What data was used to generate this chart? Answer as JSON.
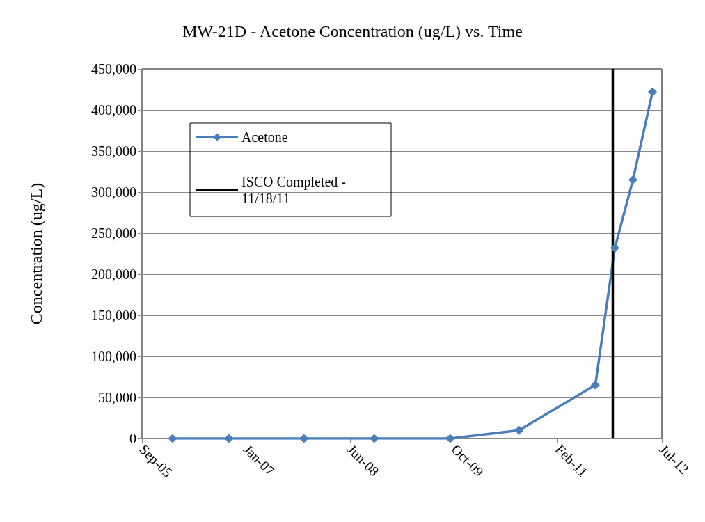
{
  "chart_data": {
    "type": "line",
    "title": "MW-21D - Acetone Concentration (ug/L) vs. Time",
    "ylabel": "Concentration (ug/L)",
    "x": [
      "2006-01-31",
      "2006-10-29",
      "2007-10-25",
      "2008-09-27",
      "2009-09-27",
      "2010-08-24",
      "2011-08-26",
      "2011-11-28",
      "2012-02-23",
      "2012-05-27"
    ],
    "series": [
      {
        "name": "Acetone",
        "color": "#4a7ebb",
        "values": [
          0,
          0,
          0,
          0,
          0,
          10000,
          65000,
          232000,
          315000,
          422000
        ]
      }
    ],
    "xlim": [
      "2005-09-06",
      "2012-07-11"
    ],
    "xticks": [
      {
        "value": "2005-09-06",
        "label": "Sep-05"
      },
      {
        "value": "2007-01-19",
        "label": "Jan-07"
      },
      {
        "value": "2008-06-02",
        "label": "Jun-08"
      },
      {
        "value": "2009-10-15",
        "label": "Oct-09"
      },
      {
        "value": "2011-02-27",
        "label": "Feb-11"
      },
      {
        "value": "2012-07-11",
        "label": "Jul-12"
      }
    ],
    "ylim": [
      0,
      450000
    ],
    "yticks": [
      0,
      {
        "value": 50000,
        "label": "50,000"
      },
      {
        "value": 100000,
        "label": "100,000"
      },
      {
        "value": 150000,
        "label": "150,000"
      },
      {
        "value": 200000,
        "label": "200,000"
      },
      {
        "value": 250000,
        "label": "250,000"
      },
      {
        "value": 300000,
        "label": "300,000"
      },
      {
        "value": 350000,
        "label": "350,000"
      },
      {
        "value": 400000,
        "label": "400,000"
      },
      {
        "value": 450000,
        "label": "450,000"
      }
    ],
    "ref_lines": [
      {
        "axis": "x",
        "value": "2011-11-18",
        "label": "ISCO Completed - 11/18/11",
        "color": "#000000"
      }
    ],
    "grid": "y",
    "legend": "top left",
    "marker": "diamond"
  }
}
